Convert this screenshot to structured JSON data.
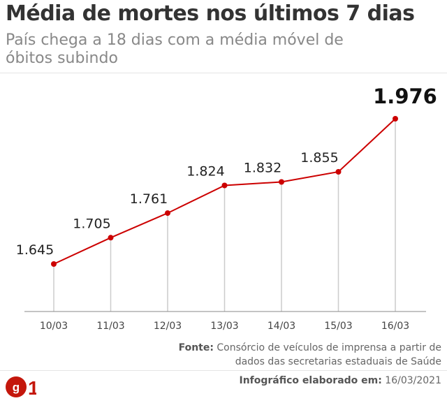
{
  "chart_data": {
    "type": "line",
    "title": "Média de mortes nos últimos 7 dias",
    "subtitle": "País chega a 18 dias com a média móvel de óbitos subindo",
    "categories": [
      "10/03",
      "11/03",
      "12/03",
      "13/03",
      "14/03",
      "15/03",
      "16/03"
    ],
    "values": [
      1645,
      1705,
      1761,
      1824,
      1832,
      1855,
      1976
    ],
    "data_labels": [
      "1.645",
      "1.705",
      "1.761",
      "1.824",
      "1.832",
      "1.855",
      "1.976"
    ],
    "ylim": [
      1500,
      2000
    ],
    "grid": false,
    "line_color": "#cc0000",
    "stem_color": "#cccccc"
  },
  "source": {
    "label": "Fonte:",
    "text": "Consórcio de veículos de imprensa a partir de dados das secretarias estaduais de Saúde"
  },
  "credit": {
    "label": "Infográfico elaborado em:",
    "date": "16/03/2021"
  },
  "logo": {
    "text": "G1",
    "color": "#c4170c"
  }
}
